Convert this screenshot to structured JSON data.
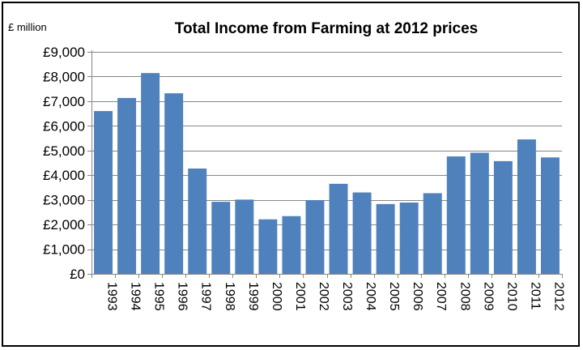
{
  "chart_data": {
    "type": "bar",
    "title": "Total Income from Farming at 2012 prices",
    "unit_label": "£ million",
    "xlabel": "",
    "ylabel": "",
    "ylim": [
      0,
      9000
    ],
    "ytick_values": [
      0,
      1000,
      2000,
      3000,
      4000,
      5000,
      6000,
      7000,
      8000,
      9000
    ],
    "ytick_labels": [
      "£0",
      "£1,000",
      "£2,000",
      "£3,000",
      "£4,000",
      "£5,000",
      "£6,000",
      "£7,000",
      "£8,000",
      "£9,000"
    ],
    "categories": [
      "1993",
      "1994",
      "1995",
      "1996",
      "1997",
      "1998",
      "1999",
      "2000",
      "2001",
      "2002",
      "2003",
      "2004",
      "2005",
      "2006",
      "2007",
      "2008",
      "2009",
      "2010",
      "2011",
      "2012"
    ],
    "values": [
      6600,
      7130,
      8140,
      7320,
      4270,
      2920,
      3010,
      2210,
      2340,
      2990,
      3650,
      3300,
      2830,
      2890,
      3270,
      4760,
      4910,
      4570,
      5450,
      4720
    ],
    "bar_color": "#4f81bd",
    "grid": true,
    "legend": "none"
  }
}
